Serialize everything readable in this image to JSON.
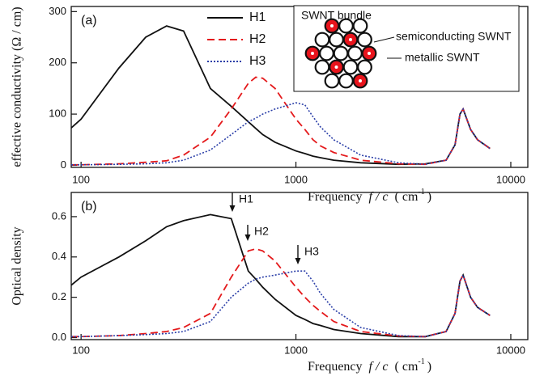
{
  "chart_data": [
    {
      "type": "line",
      "panel_label": "(a)",
      "x_label": "Frequency",
      "x_label_var": "f / c",
      "x_label_unit": "( cm",
      "x_label_sup": "-1",
      "x_label_end": ")",
      "y_label": "effective conductivity (Ω / cm)",
      "xscale": "log",
      "xlim": [
        90,
        12000
      ],
      "xticks": [
        100,
        1000,
        10000
      ],
      "ylim": [
        -4,
        310
      ],
      "yticks": [
        0,
        100,
        200,
        300
      ],
      "legend": "upper center",
      "x": [
        90,
        100,
        150,
        200,
        250,
        300,
        400,
        500,
        600,
        650,
        700,
        800,
        1000,
        1100,
        1200,
        1300,
        1500,
        2000,
        3000,
        4000,
        5000,
        5500,
        5800,
        6000,
        6500,
        7000,
        8000
      ],
      "series": [
        {
          "name": "H1",
          "color": "#111111",
          "dash": "solid",
          "values": [
            73,
            90,
            190,
            250,
            272,
            262,
            150,
            115,
            85,
            72,
            60,
            45,
            28,
            23,
            18,
            15,
            10,
            5,
            2,
            3,
            10,
            40,
            100,
            110,
            70,
            50,
            33
          ]
        },
        {
          "name": "H2",
          "color": "#e41a1c",
          "dash": "dashed",
          "values": [
            1,
            1,
            3,
            6,
            9,
            20,
            55,
            110,
            160,
            172,
            170,
            150,
            90,
            70,
            50,
            38,
            25,
            10,
            3,
            2,
            10,
            40,
            100,
            110,
            70,
            50,
            33
          ]
        },
        {
          "name": "H3",
          "color": "#2b3fa8",
          "dash": "dotted",
          "values": [
            1,
            1,
            2,
            3,
            5,
            10,
            30,
            60,
            85,
            92,
            100,
            110,
            122,
            118,
            95,
            75,
            50,
            20,
            5,
            2,
            10,
            40,
            100,
            110,
            70,
            50,
            33
          ]
        }
      ],
      "inset": {
        "title": "SWNT bundle",
        "label_1": "semiconducting SWNT",
        "label_2": "metallic SWNT"
      }
    },
    {
      "type": "line",
      "panel_label": "(b)",
      "x_label": "Frequency",
      "x_label_var": "f / c",
      "x_label_unit": "( cm",
      "x_label_sup": "-1",
      "x_label_end": ")",
      "y_label": "Optical density",
      "xscale": "log",
      "xlim": [
        90,
        12000
      ],
      "xticks": [
        100,
        1000,
        10000
      ],
      "ylim": [
        -0.01,
        0.72
      ],
      "yticks": [
        {
          "value": 0,
          "label": "0.0"
        },
        0.2,
        0.4,
        0.6
      ],
      "x": [
        90,
        100,
        150,
        200,
        250,
        300,
        400,
        500,
        600,
        650,
        700,
        800,
        1000,
        1100,
        1200,
        1300,
        1500,
        2000,
        3000,
        4000,
        5000,
        5500,
        5800,
        6000,
        6500,
        7000,
        8000
      ],
      "series": [
        {
          "color": "#111111",
          "dash": "solid",
          "values": [
            0.26,
            0.3,
            0.4,
            0.48,
            0.55,
            0.58,
            0.61,
            0.59,
            0.33,
            0.29,
            0.25,
            0.19,
            0.11,
            0.09,
            0.07,
            0.06,
            0.04,
            0.02,
            0.005,
            0.005,
            0.03,
            0.12,
            0.28,
            0.31,
            0.2,
            0.15,
            0.11
          ]
        },
        {
          "color": "#e41a1c",
          "dash": "dashed",
          "values": [
            0.005,
            0.005,
            0.01,
            0.02,
            0.03,
            0.05,
            0.12,
            0.3,
            0.43,
            0.44,
            0.43,
            0.38,
            0.25,
            0.2,
            0.16,
            0.13,
            0.08,
            0.03,
            0.008,
            0.005,
            0.03,
            0.12,
            0.28,
            0.31,
            0.2,
            0.15,
            0.11
          ]
        },
        {
          "color": "#2b3fa8",
          "dash": "dotted",
          "values": [
            0.005,
            0.005,
            0.01,
            0.015,
            0.02,
            0.03,
            0.08,
            0.2,
            0.27,
            0.29,
            0.3,
            0.31,
            0.33,
            0.33,
            0.28,
            0.22,
            0.14,
            0.05,
            0.01,
            0.005,
            0.03,
            0.12,
            0.28,
            0.31,
            0.2,
            0.15,
            0.11
          ]
        }
      ],
      "annotations": [
        "H1",
        "H2",
        "H3"
      ]
    }
  ]
}
